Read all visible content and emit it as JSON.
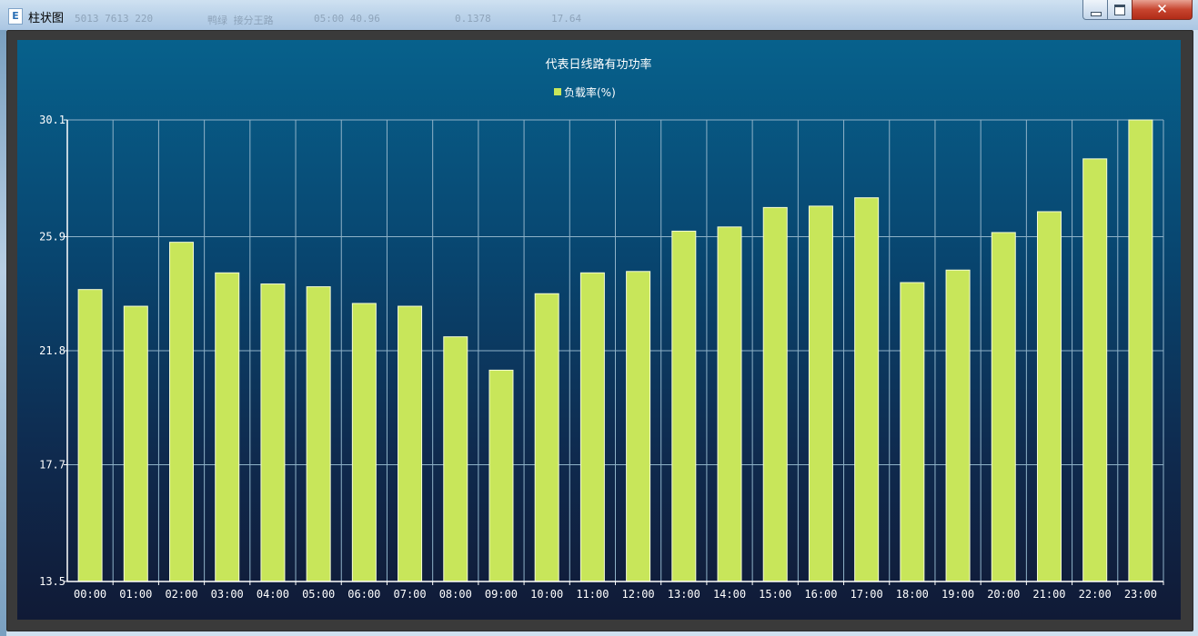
{
  "window": {
    "title": "柱状图",
    "icon": "E",
    "buttons": {
      "minimize": "minimize",
      "maximize": "maximize",
      "close": "close"
    }
  },
  "background_text": [
    "5013  7613   220",
    "鸭绿 接分王路",
    "05:00   40.96",
    "0.1378",
    "17.64"
  ],
  "chart_data": {
    "type": "bar",
    "title": "代表日线路有功功率",
    "legend": [
      "负载率(%)"
    ],
    "legend_position": "top-center",
    "grid": true,
    "categories": [
      "00:00",
      "01:00",
      "02:00",
      "03:00",
      "04:00",
      "05:00",
      "06:00",
      "07:00",
      "08:00",
      "09:00",
      "10:00",
      "11:00",
      "12:00",
      "13:00",
      "14:00",
      "15:00",
      "16:00",
      "17:00",
      "18:00",
      "19:00",
      "20:00",
      "21:00",
      "22:00",
      "23:00"
    ],
    "series": [
      {
        "name": "负载率(%)",
        "values": [
          24.0,
          23.4,
          25.7,
          24.6,
          24.2,
          24.1,
          23.5,
          23.4,
          22.3,
          21.1,
          23.85,
          24.6,
          24.65,
          26.1,
          26.25,
          26.95,
          27.0,
          27.3,
          24.25,
          24.7,
          26.05,
          26.8,
          28.7,
          30.1
        ]
      }
    ],
    "yticks": [
      "30.1",
      "25.9",
      "21.8",
      "17.7",
      "13.5"
    ],
    "ylim": [
      13.5,
      30.1
    ],
    "colors": {
      "bar": "#c8e65a",
      "bar_stroke": "#f4fbd6",
      "grid": "#8fb2c8",
      "axis": "#ffffff",
      "text": "#ffffff"
    }
  }
}
